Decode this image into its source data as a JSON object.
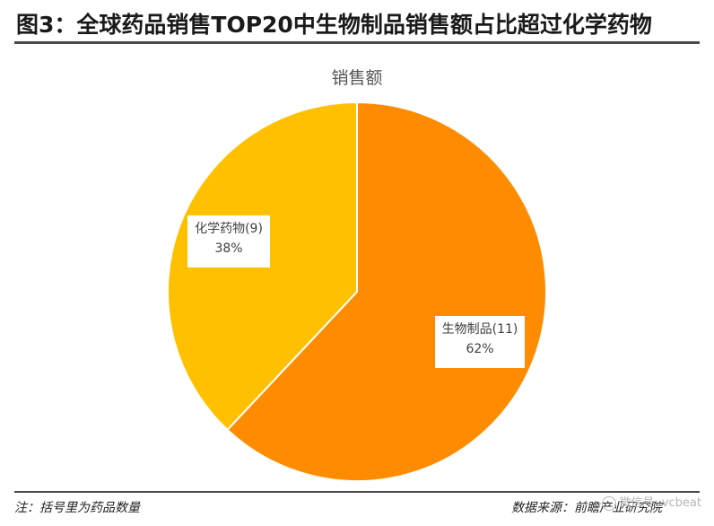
{
  "figure": {
    "title": "图3：全球药品销售TOP20中生物制品销售额占比超过化学药物",
    "note": "注：括号里为药品数量",
    "source": "数据来源：前瞻产业研究院",
    "watermark": "微信号: vcbeat"
  },
  "chart_data": {
    "type": "pie",
    "title": "销售额",
    "slices": [
      {
        "label": "生物制品(11)",
        "value": 62,
        "percent_label": "62%",
        "color": "#FF8C00"
      },
      {
        "label": "化学药物(9)",
        "value": 38,
        "percent_label": "38%",
        "color": "#FFC000"
      }
    ],
    "start": "12 o'clock",
    "direction": "clockwise",
    "legend": "none"
  }
}
